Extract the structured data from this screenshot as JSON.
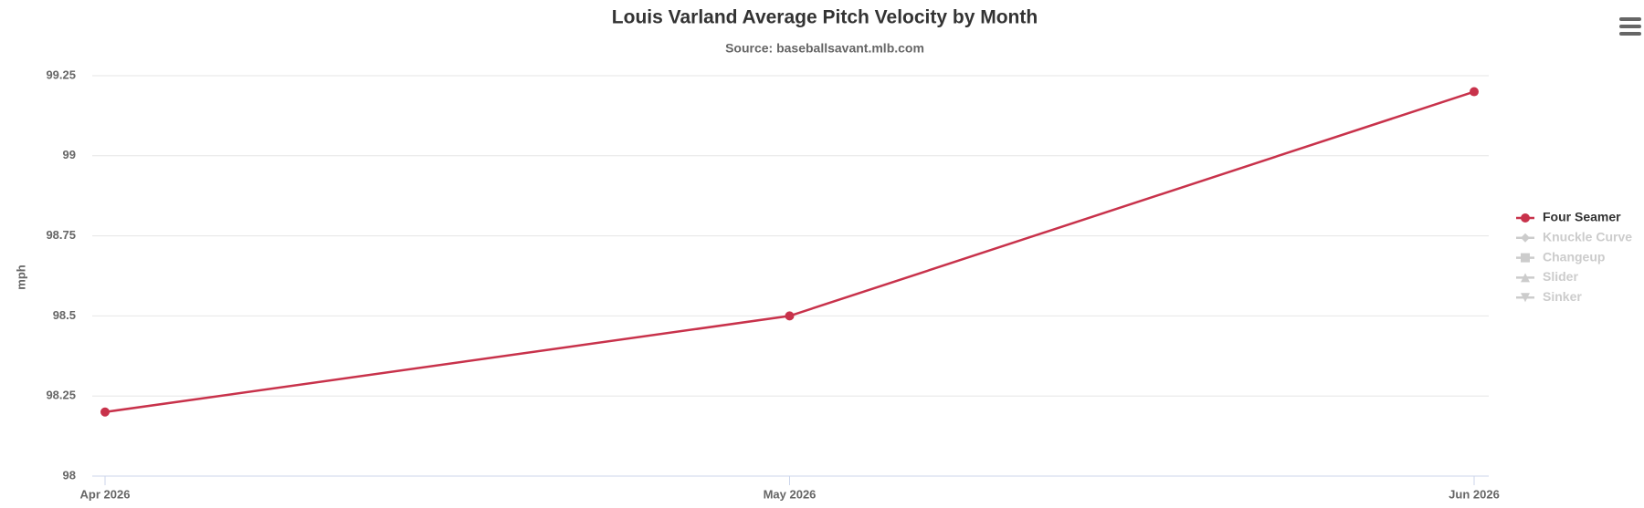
{
  "chart_data": {
    "type": "line",
    "title": "Louis Varland Average Pitch Velocity by Month",
    "subtitle": "Source: baseballsavant.mlb.com",
    "y_label": "mph",
    "categories": [
      "Apr 2026",
      "May 2026",
      "Jun 2026"
    ],
    "series": [
      {
        "name": "Four Seamer",
        "color": "#c8324b",
        "marker": "circle",
        "visible": true,
        "values": [
          98.2,
          98.5,
          99.2
        ]
      },
      {
        "name": "Knuckle Curve",
        "marker": "diamond",
        "visible": false,
        "values": [
          null,
          null,
          null
        ]
      },
      {
        "name": "Changeup",
        "marker": "square",
        "visible": false,
        "values": [
          null,
          null,
          null
        ]
      },
      {
        "name": "Slider",
        "marker": "triangle",
        "visible": false,
        "values": [
          null,
          null,
          null
        ]
      },
      {
        "name": "Sinker",
        "marker": "triangle-down",
        "visible": false,
        "values": [
          null,
          null,
          null
        ]
      }
    ],
    "ylim": [
      98,
      99.25
    ],
    "yticks": [
      98,
      98.25,
      98.5,
      98.75,
      99,
      99.25
    ],
    "grid": true,
    "legend": "right"
  }
}
